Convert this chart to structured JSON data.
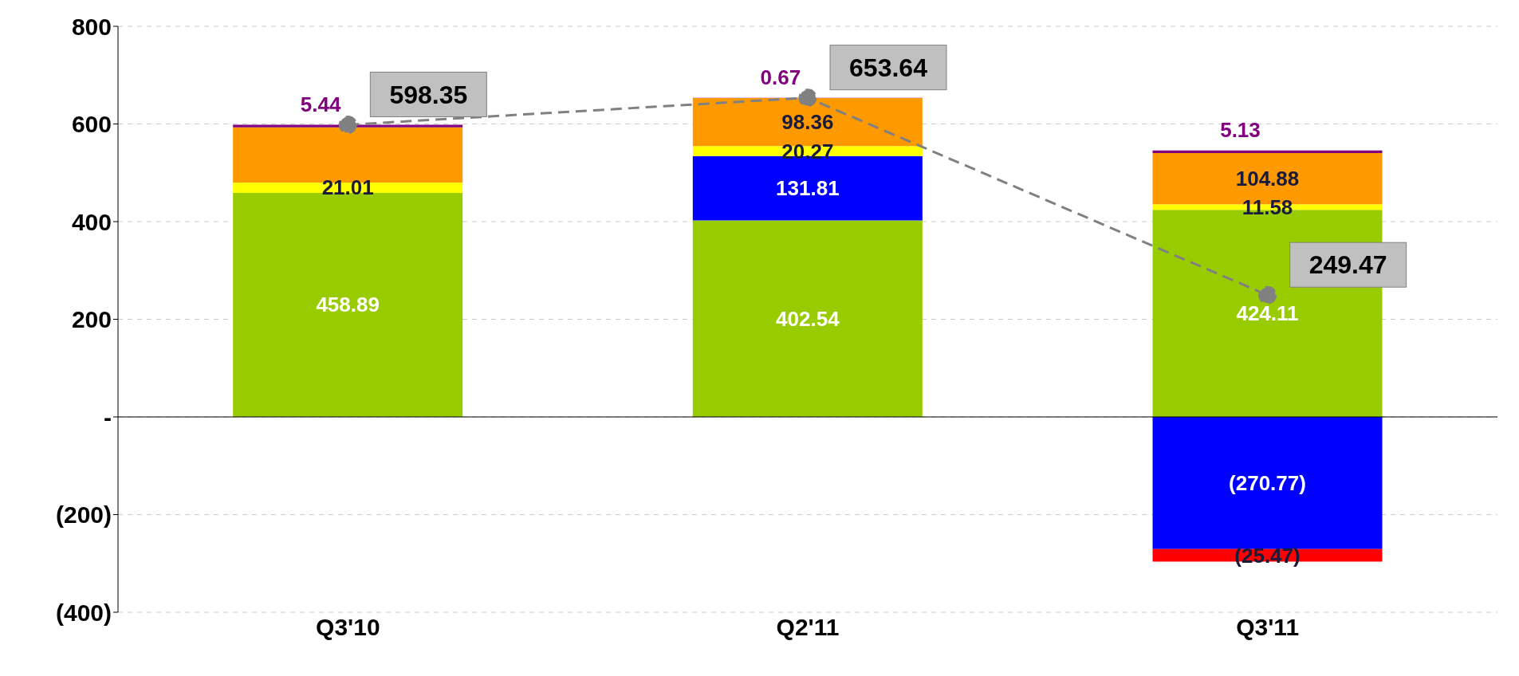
{
  "chart_data": {
    "type": "bar",
    "stacked": true,
    "categories": [
      "Q3'10",
      "Q2'11",
      "Q3'11"
    ],
    "series": [
      {
        "color": "#99cc00",
        "values": [
          458.89,
          402.54,
          424.11
        ],
        "value_labels": [
          "458.89",
          "402.54",
          "424.11"
        ]
      },
      {
        "color": "#0000ff",
        "values": [
          null,
          131.81,
          -270.77
        ],
        "value_labels": [
          null,
          "131.81",
          "(270.77)"
        ]
      },
      {
        "color": "#ffff00",
        "values": [
          21.01,
          20.27,
          11.58
        ],
        "value_labels": [
          "21.01",
          "20.27",
          "11.58"
        ]
      },
      {
        "color": "#ff9900",
        "values": [
          113,
          98.36,
          104.88
        ],
        "value_labels": [
          null,
          "98.36",
          "104.88"
        ]
      },
      {
        "color": "#800080",
        "values": [
          5.44,
          0.67,
          5.13
        ],
        "value_labels": [
          "5.44",
          "0.67",
          "5.13"
        ]
      },
      {
        "color": "#ff0000",
        "values": [
          null,
          null,
          -25.47
        ],
        "value_labels": [
          null,
          null,
          "(25.47)"
        ]
      },
      {
        "type": "line",
        "color": "#808080",
        "values": [
          598.35,
          653.64,
          249.47
        ],
        "value_labels": [
          "598.35",
          "653.64",
          "249.47"
        ],
        "marker": "circle",
        "line_style": "dashed"
      }
    ],
    "ylim": [
      -400,
      800
    ],
    "yticks": [
      {
        "value": -400,
        "label": "(400)"
      },
      {
        "value": -200,
        "label": "(200)"
      },
      {
        "value": 0,
        "label": "-"
      },
      200,
      400,
      600,
      800
    ],
    "grid": "y",
    "legend": false
  }
}
